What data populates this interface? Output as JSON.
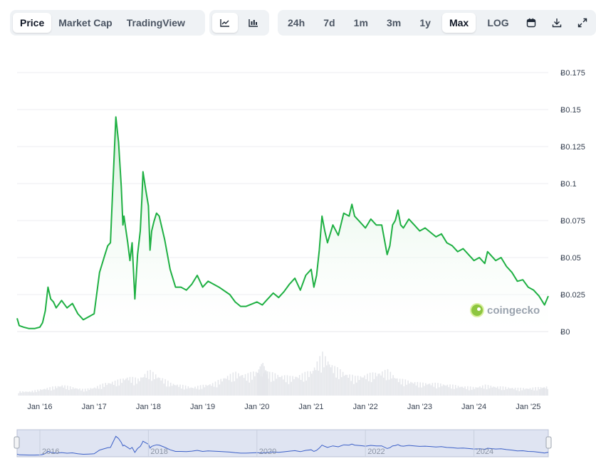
{
  "toolbar": {
    "view_tabs": [
      {
        "label": "Price",
        "active": true
      },
      {
        "label": "Market Cap",
        "active": false
      },
      {
        "label": "TradingView",
        "active": false
      }
    ],
    "chart_type_icons": [
      {
        "icon": "line-chart-icon",
        "active": true
      },
      {
        "icon": "candlestick-chart-icon",
        "active": false
      }
    ],
    "ranges": [
      {
        "label": "24h",
        "active": false
      },
      {
        "label": "7d",
        "active": false
      },
      {
        "label": "1m",
        "active": false
      },
      {
        "label": "3m",
        "active": false
      },
      {
        "label": "1y",
        "active": false
      },
      {
        "label": "Max",
        "active": true
      },
      {
        "label": "LOG",
        "active": false
      }
    ],
    "action_icons": [
      "calendar-icon",
      "download-icon",
      "expand-icon"
    ]
  },
  "watermark": {
    "text": "coingecko"
  },
  "colors": {
    "line": "#1fb043",
    "area_top": "#cfeed6",
    "nav_line": "#3b5fc7",
    "nav_bg": "#dfe4f2",
    "grid": "#eceef1"
  },
  "chart_data": {
    "type": "line",
    "currency_symbol": "Ƀ",
    "y_ticks": [
      "Ƀ0",
      "Ƀ0.025",
      "Ƀ0.05",
      "Ƀ0.075",
      "Ƀ0.1",
      "Ƀ0.125",
      "Ƀ0.15",
      "Ƀ0.175"
    ],
    "ylim": [
      0,
      0.175
    ],
    "x_ticks": [
      "Jan '16",
      "Jan '17",
      "Jan '18",
      "Jan '19",
      "Jan '20",
      "Jan '21",
      "Jan '22",
      "Jan '23",
      "Jan '24",
      "Jan '25"
    ],
    "xlim": [
      2015.58,
      2025.37
    ],
    "navigator_ticks": [
      "2016",
      "2018",
      "2020",
      "2022",
      "2024"
    ],
    "series": [
      {
        "x": [
          2015.58,
          2015.62,
          2015.7,
          2015.8,
          2015.9,
          2016.0,
          2016.05,
          2016.1,
          2016.15,
          2016.2,
          2016.25,
          2016.3,
          2016.4,
          2016.5,
          2016.6,
          2016.7,
          2016.8,
          2016.9,
          2017.0,
          2017.1,
          2017.2,
          2017.25,
          2017.3,
          2017.35,
          2017.4,
          2017.45,
          2017.5,
          2017.53,
          2017.55,
          2017.58,
          2017.62,
          2017.66,
          2017.7,
          2017.75,
          2017.8,
          2017.85,
          2017.88,
          2017.9,
          2017.95,
          2018.0,
          2018.03,
          2018.06,
          2018.1,
          2018.15,
          2018.2,
          2018.3,
          2018.4,
          2018.5,
          2018.6,
          2018.7,
          2018.8,
          2018.9,
          2019.0,
          2019.1,
          2019.3,
          2019.5,
          2019.6,
          2019.7,
          2019.8,
          2020.0,
          2020.1,
          2020.2,
          2020.3,
          2020.4,
          2020.5,
          2020.6,
          2020.7,
          2020.8,
          2020.9,
          2021.0,
          2021.05,
          2021.1,
          2021.15,
          2021.2,
          2021.25,
          2021.3,
          2021.4,
          2021.5,
          2021.6,
          2021.7,
          2021.75,
          2021.8,
          2021.9,
          2022.0,
          2022.1,
          2022.2,
          2022.3,
          2022.4,
          2022.45,
          2022.5,
          2022.55,
          2022.6,
          2022.65,
          2022.7,
          2022.8,
          2022.9,
          2023.0,
          2023.1,
          2023.2,
          2023.3,
          2023.4,
          2023.5,
          2023.6,
          2023.7,
          2023.8,
          2023.9,
          2024.0,
          2024.1,
          2024.2,
          2024.25,
          2024.3,
          2024.4,
          2024.5,
          2024.6,
          2024.7,
          2024.8,
          2024.9,
          2025.0,
          2025.1,
          2025.2,
          2025.3,
          2025.37
        ],
        "y": [
          0.009,
          0.004,
          0.003,
          0.002,
          0.002,
          0.003,
          0.006,
          0.014,
          0.03,
          0.022,
          0.02,
          0.016,
          0.021,
          0.016,
          0.019,
          0.012,
          0.008,
          0.01,
          0.012,
          0.04,
          0.052,
          0.058,
          0.06,
          0.103,
          0.145,
          0.128,
          0.098,
          0.072,
          0.078,
          0.07,
          0.06,
          0.048,
          0.06,
          0.022,
          0.052,
          0.068,
          0.09,
          0.108,
          0.096,
          0.085,
          0.055,
          0.068,
          0.074,
          0.08,
          0.078,
          0.062,
          0.042,
          0.03,
          0.03,
          0.028,
          0.032,
          0.038,
          0.03,
          0.034,
          0.03,
          0.025,
          0.02,
          0.017,
          0.017,
          0.02,
          0.018,
          0.022,
          0.026,
          0.023,
          0.027,
          0.032,
          0.036,
          0.028,
          0.038,
          0.042,
          0.03,
          0.038,
          0.055,
          0.078,
          0.068,
          0.06,
          0.072,
          0.065,
          0.08,
          0.078,
          0.086,
          0.078,
          0.074,
          0.07,
          0.076,
          0.072,
          0.072,
          0.052,
          0.058,
          0.072,
          0.075,
          0.082,
          0.072,
          0.07,
          0.076,
          0.072,
          0.068,
          0.07,
          0.067,
          0.064,
          0.066,
          0.06,
          0.058,
          0.054,
          0.056,
          0.052,
          0.048,
          0.05,
          0.046,
          0.054,
          0.052,
          0.048,
          0.05,
          0.044,
          0.04,
          0.034,
          0.035,
          0.03,
          0.028,
          0.024,
          0.018,
          0.024
        ]
      }
    ],
    "volume": {
      "x": [
        2015.6,
        2015.8,
        2016.0,
        2016.2,
        2016.4,
        2016.6,
        2016.8,
        2017.0,
        2017.2,
        2017.4,
        2017.6,
        2017.8,
        2018.0,
        2018.2,
        2018.4,
        2018.6,
        2018.8,
        2019.0,
        2019.2,
        2019.4,
        2019.6,
        2019.8,
        2020.0,
        2020.1,
        2020.2,
        2020.4,
        2020.6,
        2020.8,
        2021.0,
        2021.2,
        2021.4,
        2021.6,
        2021.8,
        2022.0,
        2022.2,
        2022.4,
        2022.6,
        2022.8,
        2023.0,
        2023.2,
        2023.4,
        2023.6,
        2023.8,
        2024.0,
        2024.2,
        2024.4,
        2024.6,
        2024.8,
        2025.0,
        2025.2,
        2025.37
      ],
      "y": [
        0.1,
        0.1,
        0.15,
        0.2,
        0.25,
        0.2,
        0.15,
        0.2,
        0.3,
        0.35,
        0.45,
        0.4,
        0.6,
        0.45,
        0.3,
        0.25,
        0.2,
        0.25,
        0.3,
        0.45,
        0.55,
        0.5,
        0.6,
        0.75,
        0.55,
        0.5,
        0.45,
        0.5,
        0.6,
        1.0,
        0.7,
        0.55,
        0.45,
        0.5,
        0.55,
        0.6,
        0.4,
        0.35,
        0.3,
        0.3,
        0.28,
        0.25,
        0.22,
        0.2,
        0.25,
        0.22,
        0.2,
        0.18,
        0.18,
        0.2,
        0.22
      ]
    }
  }
}
